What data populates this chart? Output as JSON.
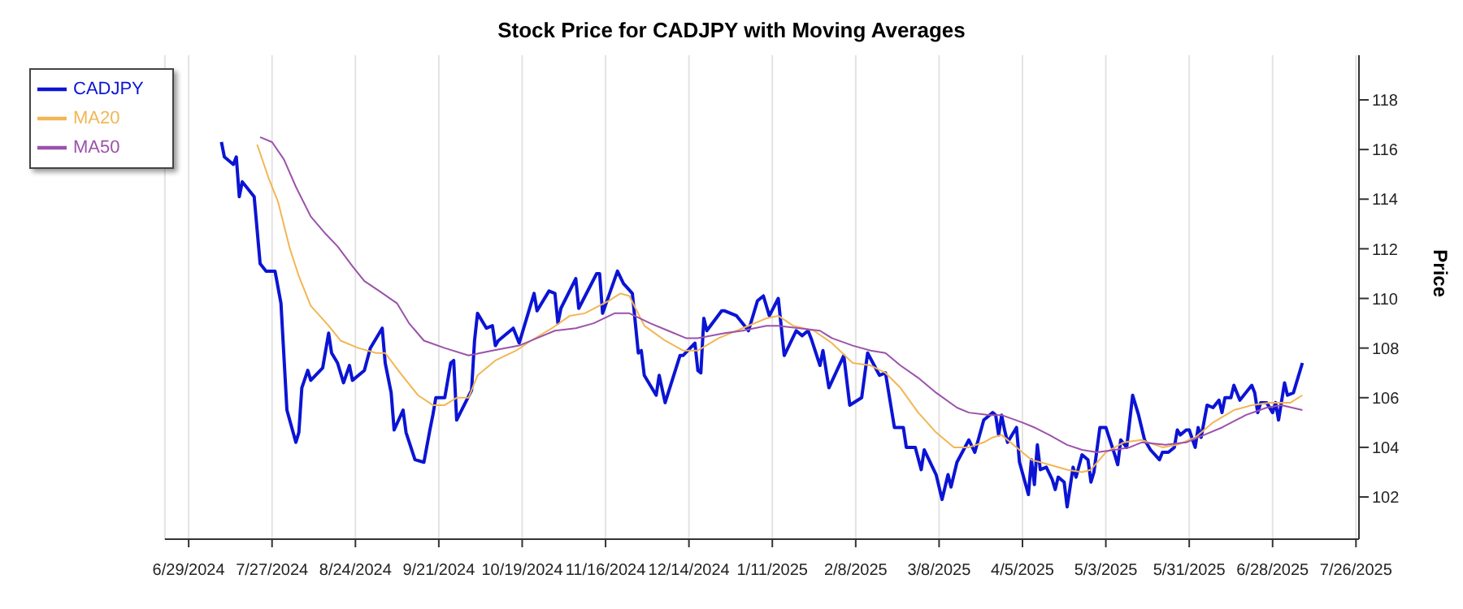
{
  "chart_data": {
    "type": "line",
    "title": "Stock Price for CADJPY with Moving Averages",
    "ylabel": "Price",
    "xlim": [
      "2024-06-21",
      "2025-07-27"
    ],
    "ylim": [
      100.3,
      119.8
    ],
    "yticks": [
      102,
      104,
      106,
      108,
      110,
      112,
      114,
      116,
      118
    ],
    "xticks": [
      {
        "value": "2024-06-29",
        "label": "6/29/2024"
      },
      {
        "value": "2024-07-27",
        "label": "7/27/2024"
      },
      {
        "value": "2024-08-24",
        "label": "8/24/2024"
      },
      {
        "value": "2024-09-21",
        "label": "9/21/2024"
      },
      {
        "value": "2024-10-19",
        "label": "10/19/2024"
      },
      {
        "value": "2024-11-16",
        "label": "11/16/2024"
      },
      {
        "value": "2024-12-14",
        "label": "12/14/2024"
      },
      {
        "value": "2025-01-11",
        "label": "1/11/2025"
      },
      {
        "value": "2025-02-08",
        "label": "2/8/2025"
      },
      {
        "value": "2025-03-08",
        "label": "3/8/2025"
      },
      {
        "value": "2025-04-05",
        "label": "4/5/2025"
      },
      {
        "value": "2025-05-03",
        "label": "5/3/2025"
      },
      {
        "value": "2025-05-31",
        "label": "5/31/2025"
      },
      {
        "value": "2025-06-28",
        "label": "6/28/2025"
      },
      {
        "value": "2025-07-26",
        "label": "7/26/2025"
      }
    ],
    "grid": "x",
    "legend": "top left",
    "series": [
      {
        "name": "CADJPY",
        "color": "#0b14d4",
        "x": [
          "2024-07-10",
          "2024-07-11",
          "2024-07-14",
          "2024-07-15",
          "2024-07-16",
          "2024-07-17",
          "2024-07-21",
          "2024-07-23",
          "2024-07-25",
          "2024-07-28",
          "2024-07-30",
          "2024-08-01",
          "2024-08-04",
          "2024-08-05",
          "2024-08-06",
          "2024-08-08",
          "2024-08-09",
          "2024-08-13",
          "2024-08-15",
          "2024-08-16",
          "2024-08-18",
          "2024-08-20",
          "2024-08-22",
          "2024-08-23",
          "2024-08-27",
          "2024-08-29",
          "2024-09-02",
          "2024-09-03",
          "2024-09-05",
          "2024-09-06",
          "2024-09-09",
          "2024-09-10",
          "2024-09-13",
          "2024-09-16",
          "2024-09-18",
          "2024-09-19",
          "2024-09-20",
          "2024-09-23",
          "2024-09-25",
          "2024-09-26",
          "2024-09-27",
          "2024-10-02",
          "2024-10-03",
          "2024-10-04",
          "2024-10-07",
          "2024-10-09",
          "2024-10-10",
          "2024-10-11",
          "2024-10-16",
          "2024-10-18",
          "2024-10-23",
          "2024-10-24",
          "2024-10-28",
          "2024-10-30",
          "2024-10-31",
          "2024-11-01",
          "2024-11-06",
          "2024-11-07",
          "2024-11-13",
          "2024-11-14",
          "2024-11-15",
          "2024-11-20",
          "2024-11-22",
          "2024-11-25",
          "2024-11-27",
          "2024-11-28",
          "2024-11-29",
          "2024-12-03",
          "2024-12-04",
          "2024-12-06",
          "2024-12-11",
          "2024-12-12",
          "2024-12-16",
          "2024-12-17",
          "2024-12-18",
          "2024-12-19",
          "2024-12-20",
          "2024-12-25",
          "2024-12-26",
          "2024-12-30",
          "2025-01-03",
          "2025-01-06",
          "2025-01-08",
          "2025-01-10",
          "2025-01-13",
          "2025-01-15",
          "2025-01-19",
          "2025-01-21",
          "2025-01-23",
          "2025-01-24",
          "2025-01-27",
          "2025-01-28",
          "2025-01-30",
          "2025-02-04",
          "2025-02-06",
          "2025-02-10",
          "2025-02-12",
          "2025-02-16",
          "2025-02-18",
          "2025-02-21",
          "2025-02-24",
          "2025-02-25",
          "2025-02-28",
          "2025-03-02",
          "2025-03-03",
          "2025-03-07",
          "2025-03-09",
          "2025-03-11",
          "2025-03-12",
          "2025-03-14",
          "2025-03-18",
          "2025-03-20",
          "2025-03-23",
          "2025-03-26",
          "2025-03-27",
          "2025-03-28",
          "2025-03-29",
          "2025-03-30",
          "2025-03-31",
          "2025-04-03",
          "2025-04-04",
          "2025-04-07",
          "2025-04-08",
          "2025-04-09",
          "2025-04-10",
          "2025-04-11",
          "2025-04-13",
          "2025-04-15",
          "2025-04-16",
          "2025-04-17",
          "2025-04-19",
          "2025-04-20",
          "2025-04-22",
          "2025-04-23",
          "2025-04-25",
          "2025-04-27",
          "2025-04-28",
          "2025-04-29",
          "2025-05-01",
          "2025-05-03",
          "2025-05-06",
          "2025-05-07",
          "2025-05-08",
          "2025-05-10",
          "2025-05-12",
          "2025-05-14",
          "2025-05-16",
          "2025-05-18",
          "2025-05-21",
          "2025-05-22",
          "2025-05-24",
          "2025-05-26",
          "2025-05-27",
          "2025-05-28",
          "2025-05-30",
          "2025-05-31",
          "2025-06-02",
          "2025-06-03",
          "2025-06-04",
          "2025-06-06",
          "2025-06-08",
          "2025-06-10",
          "2025-06-11",
          "2025-06-12",
          "2025-06-14",
          "2025-06-15",
          "2025-06-17",
          "2025-06-21",
          "2025-06-22",
          "2025-06-23",
          "2025-06-24",
          "2025-06-26",
          "2025-06-28",
          "2025-06-29",
          "2025-06-30",
          "2025-07-02",
          "2025-07-03",
          "2025-07-05",
          "2025-07-08"
        ],
        "values": [
          116.3,
          115.7,
          115.4,
          115.7,
          114.1,
          114.7,
          114.1,
          111.4,
          111.1,
          111.1,
          109.8,
          105.5,
          104.2,
          104.6,
          106.4,
          107.1,
          106.7,
          107.2,
          108.6,
          107.8,
          107.4,
          106.6,
          107.3,
          106.7,
          107.1,
          108.0,
          108.8,
          107.4,
          106.2,
          104.7,
          105.5,
          104.6,
          103.5,
          103.4,
          104.7,
          105.3,
          106.0,
          106.0,
          107.4,
          107.5,
          105.1,
          106.3,
          108.3,
          109.4,
          108.8,
          108.9,
          108.1,
          108.3,
          108.8,
          108.2,
          110.2,
          109.5,
          110.3,
          110.2,
          109.0,
          109.6,
          110.8,
          109.6,
          111.0,
          111.0,
          109.4,
          111.1,
          110.6,
          110.2,
          107.8,
          107.9,
          106.9,
          106.1,
          106.9,
          105.8,
          107.7,
          107.7,
          108.2,
          107.1,
          107.0,
          109.2,
          108.7,
          109.5,
          109.5,
          109.3,
          108.7,
          109.9,
          110.1,
          109.3,
          110.0,
          107.7,
          108.7,
          108.5,
          108.7,
          108.4,
          107.3,
          107.9,
          106.4,
          107.7,
          105.7,
          106.0,
          107.8,
          106.9,
          107.0,
          104.8,
          104.8,
          104.0,
          104.0,
          103.1,
          103.9,
          102.9,
          101.9,
          102.9,
          102.4,
          103.4,
          104.3,
          103.8,
          105.1,
          105.4,
          105.3,
          104.5,
          105.3,
          104.7,
          104.2,
          104.8,
          103.4,
          102.1,
          103.5,
          102.5,
          104.1,
          103.1,
          103.2,
          102.7,
          102.3,
          102.8,
          102.6,
          101.6,
          103.2,
          102.8,
          103.7,
          103.5,
          102.6,
          103.0,
          104.8,
          104.8,
          103.7,
          103.3,
          104.3,
          104.0,
          106.1,
          105.3,
          104.3,
          103.9,
          103.5,
          103.8,
          103.8,
          104.0,
          104.7,
          104.5,
          104.7,
          104.7,
          104.0,
          104.8,
          104.4,
          105.7,
          105.6,
          105.9,
          105.4,
          106.0,
          106.0,
          106.5,
          105.9,
          106.5,
          106.2,
          105.4,
          105.8,
          105.8,
          105.4,
          105.8,
          105.1,
          106.6,
          106.1,
          106.2,
          107.4
        ]
      },
      {
        "name": "MA20",
        "color": "#f2b655",
        "x": [
          "2024-07-22",
          "2024-07-26",
          "2024-07-29",
          "2024-08-02",
          "2024-08-05",
          "2024-08-09",
          "2024-08-15",
          "2024-08-19",
          "2024-08-25",
          "2024-08-31",
          "2024-09-03",
          "2024-09-08",
          "2024-09-14",
          "2024-09-19",
          "2024-09-23",
          "2024-09-27",
          "2024-10-01",
          "2024-10-04",
          "2024-10-10",
          "2024-10-17",
          "2024-10-22",
          "2024-10-29",
          "2024-11-04",
          "2024-11-09",
          "2024-11-17",
          "2024-11-21",
          "2024-11-24",
          "2024-11-29",
          "2024-12-06",
          "2024-12-12",
          "2024-12-17",
          "2024-12-24",
          "2025-01-01",
          "2025-01-09",
          "2025-01-13",
          "2025-01-18",
          "2025-01-25",
          "2025-01-31",
          "2025-02-07",
          "2025-02-13",
          "2025-02-18",
          "2025-02-23",
          "2025-03-01",
          "2025-03-07",
          "2025-03-13",
          "2025-03-18",
          "2025-03-23",
          "2025-03-26",
          "2025-03-29",
          "2025-04-03",
          "2025-04-08",
          "2025-04-14",
          "2025-04-20",
          "2025-04-25",
          "2025-04-28",
          "2025-05-03",
          "2025-05-09",
          "2025-05-15",
          "2025-05-22",
          "2025-05-27",
          "2025-06-02",
          "2025-06-08",
          "2025-06-15",
          "2025-06-21",
          "2025-06-27",
          "2025-07-04",
          "2025-07-08"
        ],
        "values": [
          116.2,
          114.8,
          113.9,
          112.0,
          110.9,
          109.7,
          108.9,
          108.3,
          108.0,
          107.8,
          107.8,
          107.0,
          106.1,
          105.7,
          105.7,
          106.0,
          106.0,
          106.9,
          107.5,
          107.9,
          108.3,
          108.8,
          109.3,
          109.4,
          109.9,
          110.2,
          110.1,
          108.9,
          108.3,
          107.9,
          107.9,
          108.4,
          108.8,
          109.2,
          109.3,
          108.9,
          108.7,
          108.2,
          107.4,
          107.3,
          107.0,
          106.4,
          105.4,
          104.6,
          104.0,
          104.0,
          104.2,
          104.4,
          104.5,
          104.0,
          103.5,
          103.3,
          103.1,
          103.0,
          103.1,
          103.8,
          104.2,
          104.3,
          104.0,
          104.1,
          104.4,
          105.0,
          105.5,
          105.7,
          105.8,
          105.8,
          106.1
        ]
      },
      {
        "name": "MA50",
        "color": "#9c52ab",
        "x": [
          "2024-07-23",
          "2024-07-27",
          "2024-07-31",
          "2024-08-04",
          "2024-08-09",
          "2024-08-14",
          "2024-08-18",
          "2024-08-23",
          "2024-08-27",
          "2024-09-01",
          "2024-09-07",
          "2024-09-11",
          "2024-09-16",
          "2024-09-23",
          "2024-10-01",
          "2024-10-09",
          "2024-10-18",
          "2024-10-24",
          "2024-10-30",
          "2024-11-06",
          "2024-11-12",
          "2024-11-19",
          "2024-11-24",
          "2024-12-01",
          "2024-12-07",
          "2024-12-13",
          "2024-12-17",
          "2024-12-26",
          "2025-01-01",
          "2025-01-09",
          "2025-01-13",
          "2025-01-20",
          "2025-01-27",
          "2025-01-31",
          "2025-02-07",
          "2025-02-13",
          "2025-02-18",
          "2025-02-23",
          "2025-03-01",
          "2025-03-07",
          "2025-03-14",
          "2025-03-18",
          "2025-03-25",
          "2025-03-29",
          "2025-04-05",
          "2025-04-09",
          "2025-04-14",
          "2025-04-20",
          "2025-04-25",
          "2025-04-30",
          "2025-05-06",
          "2025-05-11",
          "2025-05-15",
          "2025-05-23",
          "2025-05-30",
          "2025-06-05",
          "2025-06-11",
          "2025-06-19",
          "2025-06-26",
          "2025-07-01",
          "2025-07-08"
        ],
        "values": [
          116.5,
          116.3,
          115.6,
          114.5,
          113.3,
          112.6,
          112.1,
          111.3,
          110.7,
          110.3,
          109.8,
          109.0,
          108.3,
          108.0,
          107.7,
          107.9,
          108.1,
          108.4,
          108.7,
          108.8,
          109.0,
          109.4,
          109.4,
          109.0,
          108.7,
          108.4,
          108.4,
          108.6,
          108.7,
          108.9,
          108.9,
          108.8,
          108.7,
          108.4,
          108.1,
          107.9,
          107.8,
          107.3,
          106.8,
          106.2,
          105.6,
          105.4,
          105.3,
          105.3,
          105.0,
          104.8,
          104.5,
          104.1,
          103.9,
          103.8,
          103.9,
          104.0,
          104.2,
          104.1,
          104.2,
          104.5,
          104.8,
          105.3,
          105.6,
          105.7,
          105.5
        ]
      }
    ]
  }
}
